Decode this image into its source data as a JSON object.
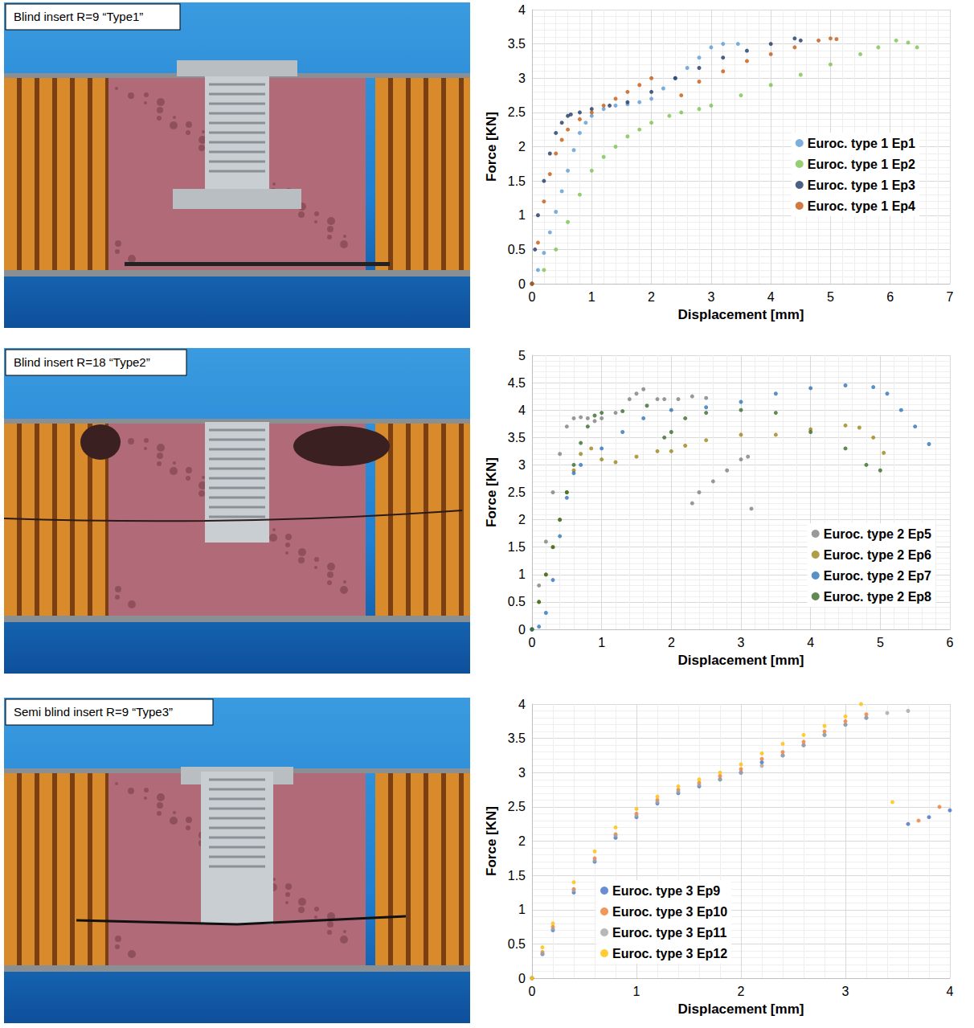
{
  "photos": [
    "Blind insert R=9 “Type1”",
    "Blind insert R=18 “Type2”",
    "Semi blind insert R=9 “Type3”"
  ],
  "chart_data": [
    {
      "type": "scatter",
      "x_label": "Displacement [mm]",
      "y_label": "Force [KN]",
      "xlim": [
        0,
        7
      ],
      "xticks": [
        0,
        1,
        2,
        3,
        4,
        5,
        6,
        7
      ],
      "ylim": [
        0,
        4
      ],
      "yticks": [
        0,
        0.5,
        1,
        1.5,
        2,
        2.5,
        3,
        3.5,
        4
      ],
      "grid": true,
      "legend": "right",
      "series": [
        {
          "name": "Euroc. type 1 Ep1",
          "color": "#5b9bd5",
          "x": [
            0,
            0.1,
            0.2,
            0.3,
            0.4,
            0.5,
            0.6,
            0.7,
            0.8,
            0.9,
            1.0,
            1.2,
            1.4,
            1.6,
            1.8,
            2.0,
            2.2,
            2.4,
            2.6,
            2.8,
            3.0,
            3.2,
            3.45
          ],
          "values": [
            0,
            0.2,
            0.45,
            0.75,
            1.05,
            1.35,
            1.65,
            1.95,
            2.2,
            2.35,
            2.45,
            2.55,
            2.6,
            2.62,
            2.65,
            2.7,
            2.85,
            3.0,
            3.15,
            3.3,
            3.45,
            3.5,
            3.5
          ]
        },
        {
          "name": "Euroc. type 1 Ep2",
          "color": "#7cc24f",
          "x": [
            0,
            0.2,
            0.4,
            0.6,
            0.8,
            1.0,
            1.2,
            1.4,
            1.6,
            1.8,
            2.0,
            2.3,
            2.5,
            2.8,
            3.0,
            3.5,
            4.0,
            4.5,
            5.0,
            5.5,
            5.8,
            6.1,
            6.3,
            6.45
          ],
          "values": [
            0,
            0.2,
            0.5,
            0.9,
            1.3,
            1.65,
            1.85,
            2.0,
            2.15,
            2.25,
            2.35,
            2.45,
            2.5,
            2.55,
            2.6,
            2.75,
            2.9,
            3.05,
            3.2,
            3.35,
            3.45,
            3.55,
            3.52,
            3.45
          ]
        },
        {
          "name": "Euroc. type 1 Ep3",
          "color": "#1f3864",
          "x": [
            0,
            0.05,
            0.1,
            0.2,
            0.3,
            0.4,
            0.5,
            0.6,
            0.65,
            0.8,
            1.0,
            1.3,
            1.6,
            2.0,
            2.4,
            2.8,
            3.2,
            3.6,
            4.0,
            4.4,
            4.5
          ],
          "values": [
            0,
            0.5,
            1.0,
            1.5,
            1.9,
            2.2,
            2.35,
            2.45,
            2.47,
            2.5,
            2.55,
            2.6,
            2.65,
            2.8,
            3.0,
            3.15,
            3.3,
            3.4,
            3.5,
            3.58,
            3.55
          ]
        },
        {
          "name": "Euroc. type 1 Ep4",
          "color": "#c55a11",
          "x": [
            0,
            0.1,
            0.2,
            0.3,
            0.4,
            0.5,
            0.6,
            0.8,
            1.0,
            1.2,
            1.4,
            1.6,
            1.8,
            2.0,
            2.5,
            2.8,
            3.2,
            3.6,
            4.0,
            4.4,
            4.8,
            5.0,
            5.1
          ],
          "values": [
            0,
            0.6,
            1.2,
            1.6,
            1.9,
            2.1,
            2.25,
            2.4,
            2.5,
            2.6,
            2.7,
            2.8,
            2.9,
            3.0,
            2.75,
            2.95,
            3.1,
            3.25,
            3.35,
            3.45,
            3.55,
            3.58,
            3.57
          ]
        }
      ]
    },
    {
      "type": "scatter",
      "x_label": "Displacement [mm]",
      "y_label": "Force [KN]",
      "xlim": [
        0,
        6
      ],
      "xticks": [
        0,
        1,
        2,
        3,
        4,
        5,
        6
      ],
      "ylim": [
        0,
        5
      ],
      "yticks": [
        0,
        0.5,
        1,
        1.5,
        2,
        2.5,
        3,
        3.5,
        4,
        4.5,
        5
      ],
      "grid": true,
      "legend": "lower right",
      "series": [
        {
          "name": "Euroc. type 2 Ep5",
          "color": "#7f7f7f",
          "x": [
            0,
            0.1,
            0.2,
            0.3,
            0.4,
            0.5,
            0.6,
            0.7,
            0.8,
            0.9,
            1.0,
            1.2,
            1.4,
            1.5,
            1.6,
            1.8,
            1.9,
            2.1,
            2.3,
            2.5,
            2.3,
            2.4,
            2.6,
            2.8,
            3.0,
            3.1,
            3.15
          ],
          "values": [
            0,
            0.8,
            1.6,
            2.5,
            3.2,
            3.7,
            3.85,
            3.87,
            3.85,
            3.8,
            3.85,
            3.95,
            4.2,
            4.3,
            4.38,
            4.2,
            4.2,
            4.2,
            4.25,
            4.22,
            2.3,
            2.5,
            2.7,
            2.9,
            3.1,
            3.15,
            2.2
          ]
        },
        {
          "name": "Euroc. type 2 Ep6",
          "color": "#9c8418",
          "x": [
            0,
            0.1,
            0.2,
            0.3,
            0.4,
            0.5,
            0.6,
            0.7,
            0.85,
            1.0,
            1.2,
            1.5,
            1.8,
            2.0,
            2.2,
            2.5,
            3.0,
            3.5,
            4.0,
            4.5,
            4.7,
            4.9,
            5.05
          ],
          "values": [
            0,
            0.5,
            1.0,
            1.5,
            2.0,
            2.5,
            2.9,
            3.2,
            3.3,
            3.1,
            3.05,
            3.15,
            3.25,
            3.25,
            3.35,
            3.45,
            3.55,
            3.55,
            3.65,
            3.72,
            3.68,
            3.5,
            3.22
          ]
        },
        {
          "name": "Euroc. type 2 Ep7",
          "color": "#2e75b6",
          "x": [
            0,
            0.1,
            0.2,
            0.3,
            0.4,
            0.5,
            0.6,
            0.7,
            1.0,
            1.3,
            1.6,
            2.0,
            2.5,
            3.0,
            3.5,
            4.0,
            4.5,
            4.9,
            5.1,
            5.3,
            5.5,
            5.7
          ],
          "values": [
            0,
            0.05,
            0.3,
            0.9,
            1.7,
            2.4,
            2.85,
            3.0,
            3.3,
            3.6,
            3.85,
            4.0,
            4.05,
            4.15,
            4.3,
            4.4,
            4.45,
            4.42,
            4.3,
            4.0,
            3.7,
            3.38
          ]
        },
        {
          "name": "Euroc. type 2 Ep8",
          "color": "#3a6b2a",
          "x": [
            0,
            0.1,
            0.2,
            0.3,
            0.4,
            0.5,
            0.6,
            0.7,
            0.8,
            0.9,
            1.0,
            1.3,
            1.65,
            1.9,
            2.0,
            2.2,
            2.5,
            3.0,
            3.5,
            4.0,
            4.5,
            4.8,
            5.0
          ],
          "values": [
            0,
            0.5,
            1.0,
            1.5,
            2.0,
            2.5,
            3.0,
            3.4,
            3.7,
            3.9,
            3.95,
            3.98,
            4.08,
            3.5,
            3.6,
            3.85,
            3.95,
            4.0,
            3.95,
            3.6,
            3.3,
            3.0,
            2.9
          ]
        }
      ]
    },
    {
      "type": "scatter",
      "x_label": "Displacement [mm]",
      "y_label": "Force [KN]",
      "xlim": [
        0,
        4
      ],
      "xticks": [
        0,
        1,
        2,
        3,
        4
      ],
      "ylim": [
        0,
        4
      ],
      "yticks": [
        0,
        0.5,
        1,
        1.5,
        2,
        2.5,
        3,
        3.5,
        4
      ],
      "grid": true,
      "legend": "lower center",
      "series": [
        {
          "name": "Euroc. type 3 Ep9",
          "color": "#4472c4",
          "x": [
            0,
            0.1,
            0.2,
            0.4,
            0.6,
            0.8,
            1.0,
            1.2,
            1.4,
            1.6,
            1.8,
            2.0,
            2.2,
            2.4,
            2.6,
            2.8,
            3.0,
            3.2,
            3.6,
            3.8,
            4.0
          ],
          "values": [
            0,
            0.35,
            0.7,
            1.25,
            1.7,
            2.05,
            2.35,
            2.55,
            2.7,
            2.8,
            2.9,
            3.0,
            3.15,
            3.25,
            3.4,
            3.55,
            3.7,
            3.8,
            2.25,
            2.35,
            2.45
          ]
        },
        {
          "name": "Euroc. type 3 Ep10",
          "color": "#ed7d31",
          "x": [
            0,
            0.1,
            0.2,
            0.4,
            0.6,
            0.8,
            1.0,
            1.2,
            1.4,
            1.6,
            1.8,
            2.0,
            2.2,
            2.4,
            2.6,
            2.8,
            3.0,
            3.2,
            3.7,
            3.9
          ],
          "values": [
            0,
            0.38,
            0.75,
            1.3,
            1.75,
            2.1,
            2.4,
            2.6,
            2.75,
            2.85,
            2.95,
            3.05,
            3.2,
            3.3,
            3.45,
            3.6,
            3.75,
            3.85,
            2.3,
            2.5
          ]
        },
        {
          "name": "Euroc. type 3 Ep11",
          "color": "#a5a5a5",
          "x": [
            0,
            0.1,
            0.2,
            0.4,
            0.6,
            0.8,
            1.0,
            1.2,
            1.4,
            1.6,
            1.8,
            2.0,
            2.2,
            2.4,
            2.6,
            2.8,
            3.0,
            3.2,
            3.4,
            3.6
          ],
          "values": [
            0,
            0.36,
            0.72,
            1.28,
            1.72,
            2.08,
            2.37,
            2.57,
            2.72,
            2.82,
            2.9,
            3.0,
            3.1,
            3.25,
            3.4,
            3.55,
            3.7,
            3.8,
            3.87,
            3.9
          ]
        },
        {
          "name": "Euroc. type 3 Ep12",
          "color": "#ffc000",
          "x": [
            0,
            0.1,
            0.2,
            0.4,
            0.6,
            0.8,
            1.0,
            1.2,
            1.4,
            1.6,
            1.8,
            2.0,
            2.2,
            2.4,
            2.6,
            2.8,
            3.0,
            3.15,
            3.45
          ],
          "values": [
            0,
            0.45,
            0.8,
            1.4,
            1.85,
            2.2,
            2.47,
            2.65,
            2.8,
            2.9,
            3.0,
            3.12,
            3.28,
            3.42,
            3.55,
            3.68,
            3.82,
            4.0,
            2.57
          ]
        }
      ]
    }
  ]
}
